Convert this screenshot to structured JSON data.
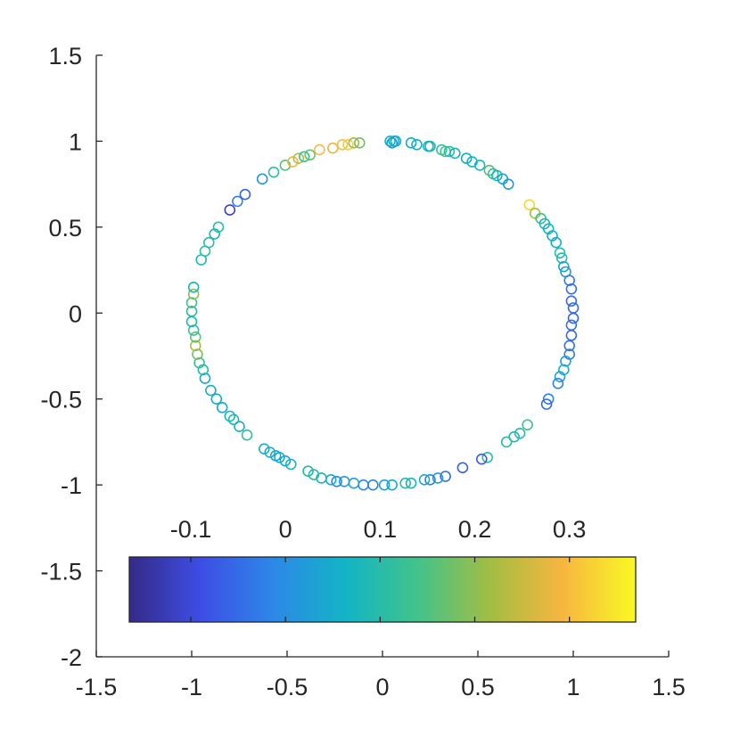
{
  "chart_data": {
    "type": "scatter",
    "title": "",
    "xlabel": "",
    "ylabel": "",
    "xlim": [
      -1.5,
      1.5
    ],
    "ylim": [
      -2,
      1.5
    ],
    "xticks": [
      "-1.5",
      "-1",
      "-0.5",
      "0",
      "0.5",
      "1",
      "1.5"
    ],
    "yticks": [
      "1.5",
      "1",
      "0.5",
      "0",
      "-0.5",
      "-1",
      "-1.5",
      "-2"
    ],
    "grid": false,
    "colormap": "parula",
    "colorbar": {
      "orientation": "horizontal",
      "location": "lower-center",
      "range": [
        -0.165,
        0.37
      ],
      "ticks": [
        -0.1,
        0,
        0.1,
        0.2,
        0.3
      ],
      "tick_labels": [
        "-0.1",
        "0",
        "0.1",
        "0.2",
        "0.3"
      ],
      "colors": [
        "#352a87",
        "#3d4ee6",
        "#2d88e8",
        "#12b5c5",
        "#43c38a",
        "#a3bd42",
        "#f8b640",
        "#f9f923"
      ]
    },
    "points": [
      {
        "x": 0.04,
        "y": 1.0,
        "c": 0.06
      },
      {
        "x": 0.06,
        "y": 1.0,
        "c": 0.06
      },
      {
        "x": 0.07,
        "y": 1.0,
        "c": 0.05
      },
      {
        "x": 0.15,
        "y": 0.99,
        "c": 0.05
      },
      {
        "x": 0.18,
        "y": 0.98,
        "c": 0.06
      },
      {
        "x": 0.24,
        "y": 0.97,
        "c": 0.08
      },
      {
        "x": 0.25,
        "y": 0.97,
        "c": 0.07
      },
      {
        "x": 0.31,
        "y": 0.95,
        "c": 0.12
      },
      {
        "x": 0.33,
        "y": 0.94,
        "c": 0.14
      },
      {
        "x": 0.35,
        "y": 0.94,
        "c": 0.1
      },
      {
        "x": 0.38,
        "y": 0.93,
        "c": 0.06
      },
      {
        "x": 0.44,
        "y": 0.9,
        "c": 0.04
      },
      {
        "x": 0.47,
        "y": 0.88,
        "c": 0.06
      },
      {
        "x": 0.51,
        "y": 0.86,
        "c": 0.08
      },
      {
        "x": 0.56,
        "y": 0.83,
        "c": 0.16
      },
      {
        "x": 0.58,
        "y": 0.81,
        "c": 0.12
      },
      {
        "x": 0.6,
        "y": 0.8,
        "c": 0.07
      },
      {
        "x": 0.63,
        "y": 0.78,
        "c": 0.03
      },
      {
        "x": 0.66,
        "y": 0.75,
        "c": 0.02
      },
      {
        "x": 0.77,
        "y": 0.63,
        "c": 0.33
      },
      {
        "x": 0.8,
        "y": 0.58,
        "c": 0.22
      },
      {
        "x": 0.83,
        "y": 0.55,
        "c": 0.12
      },
      {
        "x": 0.85,
        "y": 0.52,
        "c": 0.07
      },
      {
        "x": 0.87,
        "y": 0.49,
        "c": 0.06
      },
      {
        "x": 0.89,
        "y": 0.45,
        "c": 0.05
      },
      {
        "x": 0.91,
        "y": 0.41,
        "c": 0.06
      },
      {
        "x": 0.93,
        "y": 0.35,
        "c": 0.09
      },
      {
        "x": 0.94,
        "y": 0.32,
        "c": 0.1
      },
      {
        "x": 0.95,
        "y": 0.27,
        "c": 0.04
      },
      {
        "x": 0.96,
        "y": 0.24,
        "c": 0.02
      },
      {
        "x": 0.98,
        "y": 0.19,
        "c": -0.03
      },
      {
        "x": 0.99,
        "y": 0.14,
        "c": -0.04
      },
      {
        "x": 0.99,
        "y": 0.07,
        "c": -0.05
      },
      {
        "x": 1.0,
        "y": 0.03,
        "c": -0.05
      },
      {
        "x": 1.0,
        "y": -0.03,
        "c": -0.06
      },
      {
        "x": 0.99,
        "y": -0.07,
        "c": -0.04
      },
      {
        "x": 0.99,
        "y": -0.13,
        "c": -0.05
      },
      {
        "x": 0.98,
        "y": -0.19,
        "c": -0.04
      },
      {
        "x": 0.98,
        "y": -0.24,
        "c": -0.03
      },
      {
        "x": 0.96,
        "y": -0.28,
        "c": 0.02
      },
      {
        "x": 0.95,
        "y": -0.33,
        "c": 0.06
      },
      {
        "x": 0.93,
        "y": -0.37,
        "c": 0.04
      },
      {
        "x": 0.92,
        "y": -0.41,
        "c": -0.02
      },
      {
        "x": 0.87,
        "y": -0.5,
        "c": -0.02
      },
      {
        "x": 0.86,
        "y": -0.53,
        "c": -0.05
      },
      {
        "x": 0.76,
        "y": -0.65,
        "c": 0.14
      },
      {
        "x": 0.72,
        "y": -0.7,
        "c": 0.1
      },
      {
        "x": 0.69,
        "y": -0.72,
        "c": 0.08
      },
      {
        "x": 0.65,
        "y": -0.75,
        "c": 0.1
      },
      {
        "x": 0.55,
        "y": -0.84,
        "c": 0.1
      },
      {
        "x": 0.52,
        "y": -0.85,
        "c": -0.07
      },
      {
        "x": 0.42,
        "y": -0.9,
        "c": -0.06
      },
      {
        "x": 0.33,
        "y": -0.95,
        "c": -0.05
      },
      {
        "x": 0.29,
        "y": -0.96,
        "c": 0.02
      },
      {
        "x": 0.25,
        "y": -0.97,
        "c": -0.02
      },
      {
        "x": 0.22,
        "y": -0.97,
        "c": 0.05
      },
      {
        "x": 0.15,
        "y": -0.99,
        "c": 0.07
      },
      {
        "x": 0.12,
        "y": -0.99,
        "c": 0.09
      },
      {
        "x": 0.05,
        "y": -1.0,
        "c": 0.04
      },
      {
        "x": 0.01,
        "y": -1.0,
        "c": 0.03
      },
      {
        "x": -0.05,
        "y": -1.0,
        "c": -0.02
      },
      {
        "x": -0.1,
        "y": -1.0,
        "c": -0.01
      },
      {
        "x": -0.15,
        "y": -0.99,
        "c": 0.03
      },
      {
        "x": -0.2,
        "y": -0.98,
        "c": 0.02
      },
      {
        "x": -0.24,
        "y": -0.98,
        "c": -0.01
      },
      {
        "x": -0.27,
        "y": -0.97,
        "c": 0.04
      },
      {
        "x": -0.32,
        "y": -0.96,
        "c": 0.07
      },
      {
        "x": -0.36,
        "y": -0.94,
        "c": 0.1
      },
      {
        "x": -0.39,
        "y": -0.92,
        "c": 0.08
      },
      {
        "x": -0.48,
        "y": -0.88,
        "c": 0.07
      },
      {
        "x": -0.51,
        "y": -0.86,
        "c": 0.03
      },
      {
        "x": -0.54,
        "y": -0.84,
        "c": 0.05
      },
      {
        "x": -0.56,
        "y": -0.83,
        "c": 0.04
      },
      {
        "x": -0.59,
        "y": -0.81,
        "c": 0.05
      },
      {
        "x": -0.62,
        "y": -0.79,
        "c": 0.06
      },
      {
        "x": -0.71,
        "y": -0.71,
        "c": 0.12
      },
      {
        "x": -0.75,
        "y": -0.66,
        "c": 0.05
      },
      {
        "x": -0.78,
        "y": -0.62,
        "c": 0.09
      },
      {
        "x": -0.8,
        "y": -0.6,
        "c": 0.07
      },
      {
        "x": -0.84,
        "y": -0.55,
        "c": 0.04
      },
      {
        "x": -0.87,
        "y": -0.5,
        "c": 0.06
      },
      {
        "x": -0.9,
        "y": -0.45,
        "c": 0.05
      },
      {
        "x": -0.93,
        "y": -0.38,
        "c": 0.04
      },
      {
        "x": -0.94,
        "y": -0.33,
        "c": 0.09
      },
      {
        "x": -0.96,
        "y": -0.29,
        "c": 0.12
      },
      {
        "x": -0.97,
        "y": -0.24,
        "c": 0.18
      },
      {
        "x": -0.98,
        "y": -0.19,
        "c": 0.22
      },
      {
        "x": -0.98,
        "y": -0.14,
        "c": 0.16
      },
      {
        "x": -0.99,
        "y": -0.1,
        "c": 0.12
      },
      {
        "x": -1.0,
        "y": -0.05,
        "c": 0.08
      },
      {
        "x": -1.0,
        "y": 0.01,
        "c": 0.1
      },
      {
        "x": -1.0,
        "y": 0.06,
        "c": 0.14
      },
      {
        "x": -0.99,
        "y": 0.11,
        "c": 0.2
      },
      {
        "x": -0.99,
        "y": 0.15,
        "c": 0.06
      },
      {
        "x": -0.95,
        "y": 0.31,
        "c": 0.08
      },
      {
        "x": -0.93,
        "y": 0.36,
        "c": 0.12
      },
      {
        "x": -0.91,
        "y": 0.41,
        "c": 0.1
      },
      {
        "x": -0.88,
        "y": 0.46,
        "c": 0.07
      },
      {
        "x": -0.86,
        "y": 0.5,
        "c": 0.1
      },
      {
        "x": -0.8,
        "y": 0.6,
        "c": -0.12
      },
      {
        "x": -0.76,
        "y": 0.65,
        "c": -0.02
      },
      {
        "x": -0.72,
        "y": 0.69,
        "c": -0.06
      },
      {
        "x": -0.63,
        "y": 0.78,
        "c": 0.02
      },
      {
        "x": -0.57,
        "y": 0.82,
        "c": 0.11
      },
      {
        "x": -0.51,
        "y": 0.86,
        "c": 0.16
      },
      {
        "x": -0.47,
        "y": 0.88,
        "c": 0.28
      },
      {
        "x": -0.44,
        "y": 0.9,
        "c": 0.24
      },
      {
        "x": -0.41,
        "y": 0.91,
        "c": 0.12
      },
      {
        "x": -0.38,
        "y": 0.92,
        "c": 0.17
      },
      {
        "x": -0.33,
        "y": 0.95,
        "c": 0.3
      },
      {
        "x": -0.26,
        "y": 0.96,
        "c": 0.28
      },
      {
        "x": -0.21,
        "y": 0.98,
        "c": 0.3
      },
      {
        "x": -0.18,
        "y": 0.98,
        "c": 0.32
      },
      {
        "x": -0.15,
        "y": 0.99,
        "c": 0.22
      },
      {
        "x": -0.12,
        "y": 0.99,
        "c": 0.18
      },
      {
        "x": 0.05,
        "y": 0.99,
        "c": 0.03
      }
    ]
  }
}
